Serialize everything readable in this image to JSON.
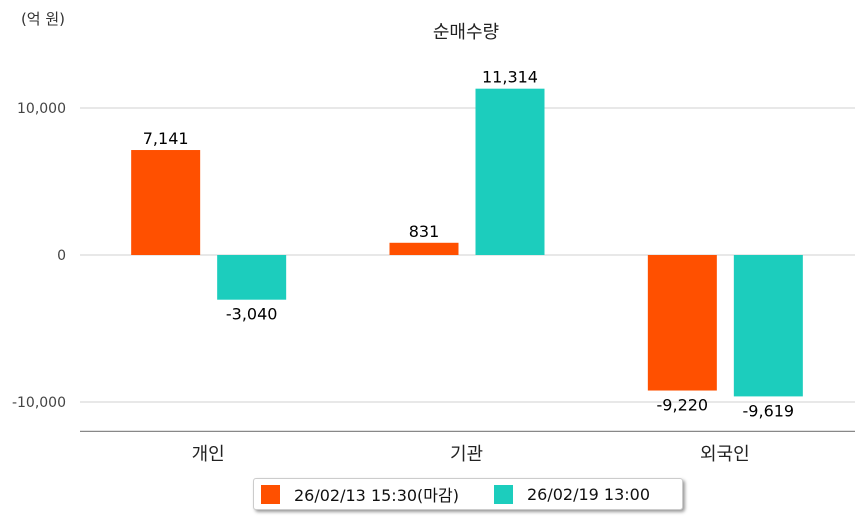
{
  "chart_data": {
    "type": "bar",
    "title": "순매수량",
    "unit_label": "(억 원)",
    "categories": [
      "개인",
      "기관",
      "외국인"
    ],
    "series": [
      {
        "name": "26/02/13 15:30(마감)",
        "color": "#ff5000",
        "values": [
          7141,
          831,
          -9220
        ],
        "labels": [
          "7,141",
          "831",
          "-9,220"
        ]
      },
      {
        "name": "26/02/19 13:00",
        "color": "#1ccdbd",
        "values": [
          -3040,
          11314,
          -9619
        ],
        "labels": [
          "-3,040",
          "11,314",
          "-9,619"
        ]
      }
    ],
    "yticks": [
      10000,
      0,
      -10000
    ],
    "ytick_labels": [
      "10,000",
      "0",
      "-10,000"
    ],
    "ylim": [
      -12000,
      13000
    ],
    "grid": true,
    "legend_position": "bottom"
  }
}
